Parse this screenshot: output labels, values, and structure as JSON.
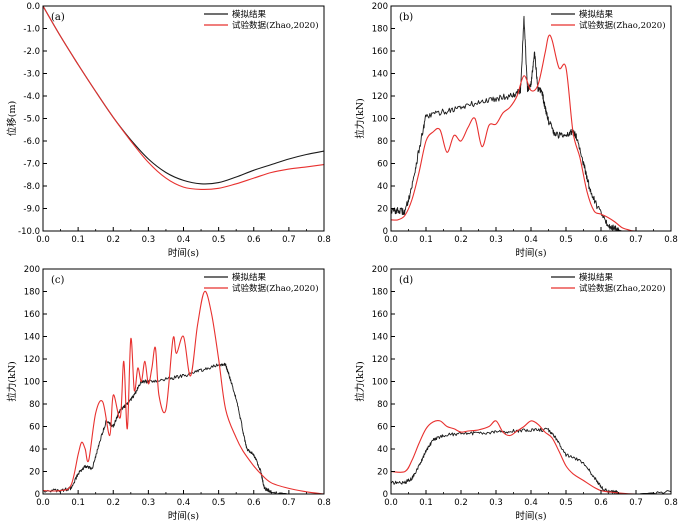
{
  "chart_data": [
    {
      "panel": "(a)",
      "type": "line",
      "xlabel": "时间(s)",
      "ylabel": "位移(m)",
      "xlim": [
        0,
        0.8
      ],
      "ylim": [
        -10,
        0
      ],
      "xticks": [
        "0.0",
        "0.1",
        "0.2",
        "0.3",
        "0.4",
        "0.5",
        "0.6",
        "0.7",
        "0.8"
      ],
      "yticks": [
        "0.0",
        "-1.0",
        "-2.0",
        "-3.0",
        "-4.0",
        "-5.0",
        "-6.0",
        "-7.0",
        "-8.0",
        "-9.0",
        "-10.0"
      ],
      "legend_position": "top-right",
      "series": [
        {
          "name": "模拟结果",
          "color": "#1a1a1a",
          "x": [
            0,
            0.05,
            0.1,
            0.15,
            0.2,
            0.25,
            0.3,
            0.35,
            0.4,
            0.45,
            0.5,
            0.55,
            0.6,
            0.65,
            0.7,
            0.75,
            0.8
          ],
          "y": [
            0,
            -1.35,
            -2.6,
            -3.8,
            -4.95,
            -5.95,
            -6.8,
            -7.4,
            -7.75,
            -7.9,
            -7.85,
            -7.6,
            -7.3,
            -7.05,
            -6.8,
            -6.6,
            -6.45
          ]
        },
        {
          "name": "试验数据(Zhao,2020)",
          "color": "#e8312f",
          "x": [
            0,
            0.05,
            0.1,
            0.15,
            0.2,
            0.25,
            0.3,
            0.35,
            0.4,
            0.45,
            0.5,
            0.55,
            0.6,
            0.65,
            0.7,
            0.75,
            0.8
          ],
          "y": [
            0,
            -1.35,
            -2.6,
            -3.8,
            -4.95,
            -6.0,
            -6.95,
            -7.65,
            -8.05,
            -8.15,
            -8.1,
            -7.9,
            -7.65,
            -7.4,
            -7.25,
            -7.15,
            -7.05
          ]
        }
      ]
    },
    {
      "panel": "(b)",
      "type": "line",
      "xlabel": "时间(s)",
      "ylabel": "拉力(kN)",
      "xlim": [
        0,
        0.8
      ],
      "ylim": [
        0,
        200
      ],
      "xticks": [
        "0.0",
        "0.1",
        "0.2",
        "0.3",
        "0.4",
        "0.5",
        "0.6",
        "0.7",
        "0.8"
      ],
      "yticks": [
        "0",
        "20",
        "40",
        "60",
        "80",
        "100",
        "120",
        "140",
        "160",
        "180",
        "200"
      ],
      "legend_position": "top-right",
      "series": [
        {
          "name": "模拟结果",
          "color": "#1a1a1a",
          "noise": 3,
          "x": [
            0,
            0.02,
            0.04,
            0.06,
            0.08,
            0.1,
            0.15,
            0.2,
            0.25,
            0.3,
            0.35,
            0.37,
            0.38,
            0.39,
            0.4,
            0.41,
            0.42,
            0.43,
            0.44,
            0.45,
            0.47,
            0.5,
            0.52,
            0.53,
            0.55,
            0.57,
            0.6,
            0.62,
            0.64,
            0.65,
            0.66,
            0.7,
            0.8
          ],
          "y": [
            18,
            18,
            17,
            40,
            72,
            102,
            106,
            110,
            114,
            118,
            121,
            125,
            190,
            125,
            130,
            160,
            125,
            125,
            110,
            98,
            85,
            86,
            88,
            84,
            60,
            35,
            15,
            5,
            2,
            1,
            0,
            0,
            0
          ]
        },
        {
          "name": "试验数据(Zhao,2020)",
          "color": "#e8312f",
          "x": [
            0,
            0.02,
            0.04,
            0.06,
            0.08,
            0.1,
            0.12,
            0.14,
            0.16,
            0.18,
            0.2,
            0.22,
            0.24,
            0.26,
            0.28,
            0.3,
            0.32,
            0.34,
            0.36,
            0.38,
            0.4,
            0.42,
            0.44,
            0.45,
            0.46,
            0.48,
            0.5,
            0.52,
            0.54,
            0.56,
            0.58,
            0.6,
            0.62,
            0.64,
            0.66,
            0.68,
            0.7,
            0.8
          ],
          "y": [
            10,
            10,
            14,
            28,
            52,
            80,
            88,
            90,
            70,
            85,
            80,
            92,
            100,
            75,
            94,
            95,
            105,
            110,
            120,
            138,
            125,
            130,
            158,
            173,
            170,
            145,
            145,
            88,
            65,
            35,
            18,
            15,
            12,
            8,
            3,
            1,
            0,
            0
          ]
        }
      ]
    },
    {
      "panel": "(c)",
      "type": "line",
      "xlabel": "时间(s)",
      "ylabel": "拉力(kN)",
      "xlim": [
        0,
        0.8
      ],
      "ylim": [
        0,
        200
      ],
      "xticks": [
        "0.0",
        "0.1",
        "0.2",
        "0.3",
        "0.4",
        "0.5",
        "0.6",
        "0.7",
        "0.8"
      ],
      "yticks": [
        "0",
        "20",
        "40",
        "60",
        "80",
        "100",
        "120",
        "140",
        "160",
        "180",
        "200"
      ],
      "legend_position": "top-right",
      "series": [
        {
          "name": "模拟结果",
          "color": "#1a1a1a",
          "noise": 1.5,
          "x": [
            0,
            0.05,
            0.08,
            0.1,
            0.12,
            0.14,
            0.16,
            0.18,
            0.2,
            0.22,
            0.24,
            0.26,
            0.28,
            0.3,
            0.35,
            0.4,
            0.45,
            0.5,
            0.52,
            0.53,
            0.55,
            0.57,
            0.58,
            0.6,
            0.62,
            0.63,
            0.65,
            0.7,
            0.8
          ],
          "y": [
            3,
            3,
            5,
            18,
            25,
            22,
            45,
            65,
            60,
            75,
            80,
            88,
            100,
            100,
            102,
            105,
            110,
            115,
            115,
            105,
            85,
            55,
            40,
            35,
            20,
            5,
            2,
            0,
            0
          ]
        },
        {
          "name": "试验数据(Zhao,2020)",
          "color": "#e8312f",
          "x": [
            0,
            0.05,
            0.08,
            0.1,
            0.11,
            0.12,
            0.13,
            0.15,
            0.17,
            0.19,
            0.2,
            0.22,
            0.23,
            0.24,
            0.25,
            0.26,
            0.27,
            0.28,
            0.29,
            0.3,
            0.31,
            0.32,
            0.33,
            0.35,
            0.37,
            0.38,
            0.4,
            0.42,
            0.44,
            0.46,
            0.48,
            0.5,
            0.52,
            0.55,
            0.57,
            0.6,
            0.62,
            0.65,
            0.7,
            0.75,
            0.8
          ],
          "y": [
            3,
            3,
            8,
            35,
            46,
            40,
            30,
            72,
            82,
            52,
            88,
            68,
            118,
            58,
            138,
            92,
            112,
            100,
            118,
            98,
            112,
            130,
            88,
            75,
            138,
            125,
            140,
            105,
            150,
            180,
            160,
            120,
            75,
            50,
            38,
            25,
            18,
            10,
            5,
            2,
            0
          ]
        }
      ]
    },
    {
      "panel": "(d)",
      "type": "line",
      "xlabel": "时间(s)",
      "ylabel": "拉力(kN)",
      "xlim": [
        0,
        0.8
      ],
      "ylim": [
        0,
        200
      ],
      "xticks": [
        "0.0",
        "0.1",
        "0.2",
        "0.3",
        "0.4",
        "0.5",
        "0.6",
        "0.7",
        "0.8"
      ],
      "yticks": [
        "0",
        "20",
        "40",
        "60",
        "80",
        "100",
        "120",
        "140",
        "160",
        "180",
        "200"
      ],
      "legend_position": "top-right",
      "series": [
        {
          "name": "模拟结果",
          "color": "#1a1a1a",
          "noise": 1.5,
          "x": [
            0,
            0.04,
            0.06,
            0.08,
            0.1,
            0.12,
            0.15,
            0.2,
            0.25,
            0.3,
            0.35,
            0.4,
            0.45,
            0.47,
            0.5,
            0.55,
            0.58,
            0.6,
            0.62,
            0.64,
            0.66,
            0.7,
            0.8
          ],
          "y": [
            10,
            10,
            14,
            25,
            38,
            48,
            52,
            54,
            54,
            55,
            56,
            57,
            57,
            50,
            35,
            28,
            15,
            6,
            2,
            2,
            0,
            0,
            2
          ]
        },
        {
          "name": "试验数据(Zhao,2020)",
          "color": "#e8312f",
          "x": [
            0,
            0.04,
            0.06,
            0.08,
            0.1,
            0.12,
            0.14,
            0.16,
            0.18,
            0.2,
            0.22,
            0.25,
            0.28,
            0.3,
            0.32,
            0.34,
            0.36,
            0.38,
            0.4,
            0.42,
            0.44,
            0.46,
            0.48,
            0.5,
            0.52,
            0.55,
            0.58,
            0.6,
            0.62,
            0.65,
            0.7,
            0.8
          ],
          "y": [
            20,
            20,
            30,
            45,
            58,
            64,
            65,
            60,
            58,
            55,
            56,
            57,
            60,
            65,
            55,
            52,
            56,
            60,
            65,
            62,
            55,
            50,
            38,
            25,
            18,
            12,
            6,
            3,
            2,
            1,
            0,
            0
          ]
        }
      ]
    }
  ]
}
